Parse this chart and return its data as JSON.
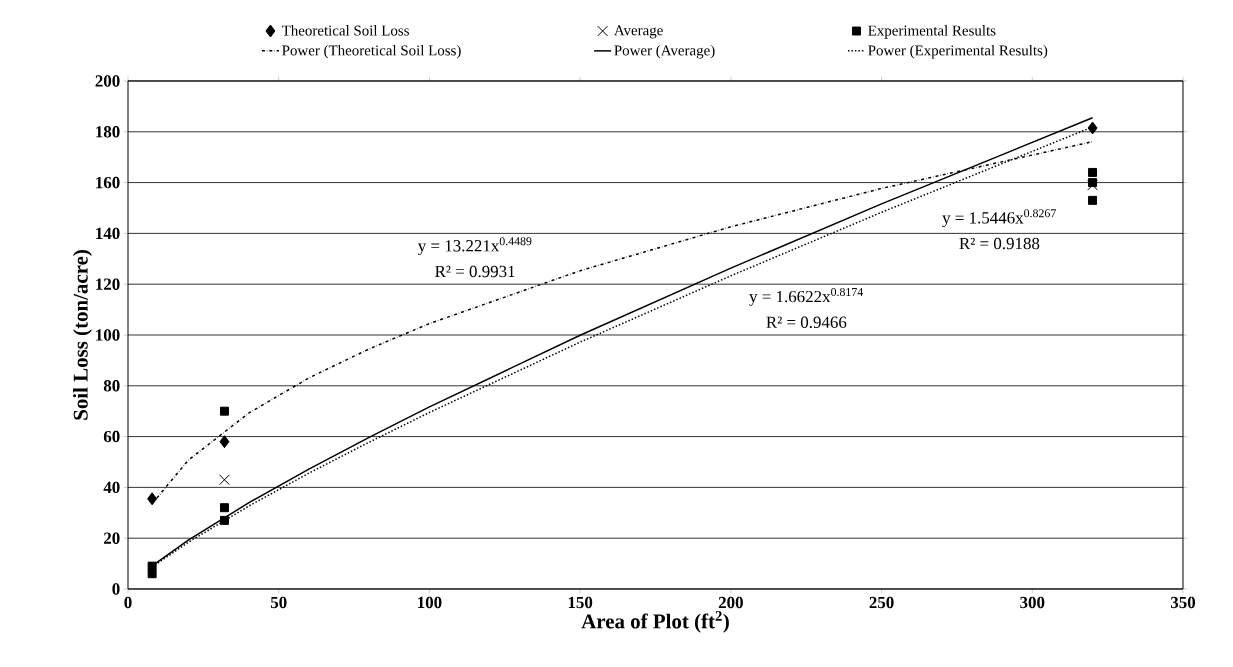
{
  "chart_data": {
    "type": "scatter",
    "xlabel": "Area of Plot (ft$^{2}$)",
    "ylabel": "Soil Loss (ton/acre)",
    "xlim": [
      0,
      350
    ],
    "ylim": [
      0,
      200
    ],
    "xticks": [
      0,
      50,
      100,
      150,
      200,
      250,
      300,
      350
    ],
    "yticks": [
      0,
      20,
      40,
      60,
      80,
      100,
      120,
      140,
      160,
      180,
      200
    ],
    "grid": "y",
    "legend": "top",
    "series": [
      {
        "name": "Theoretical Soil Loss",
        "marker": "diamond",
        "color": "#000000",
        "x": [
          8,
          32,
          320
        ],
        "values": [
          35.5,
          58,
          181.5
        ]
      },
      {
        "name": "Average",
        "marker": "cross",
        "color": "#000000",
        "x": [
          32,
          320
        ],
        "values": [
          43,
          159
        ]
      },
      {
        "name": "Experimental Results",
        "marker": "square",
        "color": "#000000",
        "x": [
          8,
          8,
          32,
          32,
          32,
          320,
          320,
          320
        ],
        "values": [
          6,
          9,
          27,
          32,
          70,
          153,
          160,
          164
        ]
      },
      {
        "name": "Power (Theoretical Soil Loss)",
        "type": "line",
        "line_style": "dashdot",
        "color": "#000000",
        "x": [
          8,
          20,
          40,
          60,
          80,
          100,
          150,
          200,
          250,
          320
        ],
        "values": [
          33.6,
          50.7,
          69.2,
          83.1,
          94.5,
          104.5,
          125.3,
          142.6,
          157.7,
          176.1
        ]
      },
      {
        "name": "Power (Average)",
        "type": "line",
        "line_style": "solid",
        "color": "#000000",
        "x": [
          8,
          20,
          40,
          60,
          80,
          100,
          150,
          200,
          250,
          320
        ],
        "values": [
          9.1,
          19.2,
          33.9,
          47.2,
          59.7,
          71.7,
          99.9,
          126.3,
          151.6,
          185.5
        ]
      },
      {
        "name": "Power (Experimental Results)",
        "type": "line",
        "line_style": "dotted",
        "color": "#000000",
        "x": [
          8,
          20,
          40,
          60,
          80,
          100,
          150,
          200,
          250,
          320
        ],
        "values": [
          8.6,
          18.4,
          32.6,
          45.6,
          57.8,
          69.5,
          97.2,
          123.3,
          148.3,
          181.9
        ]
      }
    ],
    "annotations": [
      "y = 13.221x$^{0.4489}$",
      "R² = 0.9931",
      "y = 1.6622x$^{0.8174}$",
      "R² = 0.9466",
      "y = 1.5446x$^{0.8267}$",
      "R² = 0.9188"
    ]
  }
}
